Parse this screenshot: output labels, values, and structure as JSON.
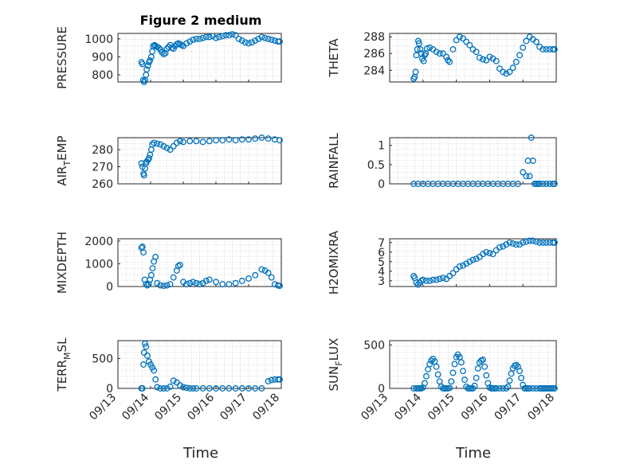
{
  "figure": {
    "title": "Figure 2 medium",
    "xlabel": "Time"
  },
  "chart_data": [
    {
      "type": "scatter",
      "id": "pressure",
      "ylabel": "PRESSURE",
      "ylabel_sub": "",
      "yticks": [
        800,
        900,
        1000
      ],
      "ylim": [
        760,
        1030
      ],
      "xticks": [
        "09/13",
        "09/14",
        "09/15",
        "09/16",
        "09/17",
        "09/18"
      ],
      "xlim": [
        0,
        5
      ],
      "show_xticklabels": false,
      "grid": true,
      "color": "#0072BD",
      "x": [
        0.72,
        0.75,
        0.77,
        0.8,
        0.83,
        0.86,
        0.88,
        0.92,
        0.95,
        0.98,
        1.02,
        1.05,
        1.08,
        1.12,
        1.15,
        1.2,
        1.25,
        1.3,
        1.35,
        1.4,
        1.45,
        1.5,
        1.55,
        1.6,
        1.65,
        1.7,
        1.75,
        1.8,
        1.85,
        1.9,
        1.95,
        2.0,
        2.1,
        2.2,
        2.3,
        2.4,
        2.5,
        2.6,
        2.7,
        2.8,
        2.9,
        3.0,
        3.1,
        3.2,
        3.3,
        3.4,
        3.5,
        3.6,
        3.7,
        3.8,
        3.9,
        4.0,
        4.1,
        4.2,
        4.3,
        4.4,
        4.5,
        4.6,
        4.7,
        4.8,
        4.9,
        4.95
      ],
      "y": [
        870,
        860,
        770,
        760,
        770,
        800,
        830,
        850,
        870,
        880,
        900,
        930,
        960,
        965,
        960,
        955,
        950,
        940,
        925,
        915,
        920,
        945,
        955,
        965,
        950,
        945,
        960,
        970,
        975,
        970,
        965,
        960,
        975,
        985,
        995,
        1000,
        1000,
        1005,
        1010,
        1010,
        1015,
        1005,
        1010,
        1015,
        1020,
        1020,
        1025,
        1020,
        1000,
        990,
        980,
        975,
        980,
        990,
        1000,
        1010,
        1005,
        1000,
        995,
        990,
        985,
        985
      ]
    },
    {
      "type": "scatter",
      "id": "theta",
      "ylabel": "THETA",
      "ylabel_sub": "",
      "yticks": [
        284,
        286,
        288
      ],
      "ylim": [
        282.6,
        288.4
      ],
      "xticks": [
        "09/13",
        "09/14",
        "09/15",
        "09/16",
        "09/17",
        "09/18"
      ],
      "xlim": [
        0,
        5
      ],
      "show_xticklabels": false,
      "grid": true,
      "color": "#0072BD",
      "x": [
        0.72,
        0.75,
        0.78,
        0.8,
        0.83,
        0.86,
        0.88,
        0.92,
        0.95,
        0.98,
        1.02,
        1.05,
        1.08,
        1.12,
        1.2,
        1.3,
        1.4,
        1.5,
        1.6,
        1.7,
        1.75,
        1.8,
        1.9,
        2.0,
        2.1,
        2.2,
        2.3,
        2.4,
        2.5,
        2.6,
        2.7,
        2.8,
        2.9,
        3.0,
        3.1,
        3.2,
        3.3,
        3.4,
        3.5,
        3.6,
        3.7,
        3.8,
        3.9,
        4.0,
        4.1,
        4.2,
        4.3,
        4.4,
        4.5,
        4.6,
        4.7,
        4.8,
        4.9,
        4.95
      ],
      "y": [
        283,
        283.2,
        283.8,
        285.8,
        286.5,
        287.5,
        287.2,
        286.5,
        286,
        285.4,
        285.1,
        285.8,
        286,
        286.6,
        286.7,
        286.5,
        286.2,
        286,
        286,
        285.6,
        285.2,
        285,
        286.5,
        287.6,
        288,
        287.8,
        287.4,
        287,
        286.5,
        286.2,
        285.5,
        285.3,
        285.2,
        285.6,
        285.4,
        285.1,
        284.2,
        283.8,
        283.6,
        283.8,
        284.3,
        285,
        285.8,
        286.7,
        287.5,
        288,
        287.7,
        287.4,
        286.8,
        286.5,
        286.5,
        286.5,
        286.5,
        286.5
      ]
    },
    {
      "type": "scatter",
      "id": "air_temp",
      "ylabel": "AIR",
      "ylabel_sub": "T",
      "ylabel_suffix": "EMP",
      "yticks": [
        260,
        270,
        280
      ],
      "ylim": [
        260,
        287
      ],
      "xticks": [
        "09/13",
        "09/14",
        "09/15",
        "09/16",
        "09/17",
        "09/18"
      ],
      "xlim": [
        0,
        5
      ],
      "show_xticklabels": false,
      "grid": true,
      "color": "#0072BD",
      "x": [
        0.72,
        0.75,
        0.78,
        0.8,
        0.83,
        0.86,
        0.88,
        0.92,
        0.95,
        0.98,
        1.02,
        1.05,
        1.1,
        1.2,
        1.3,
        1.4,
        1.5,
        1.6,
        1.7,
        1.8,
        1.9,
        2.0,
        2.2,
        2.4,
        2.6,
        2.8,
        3.0,
        3.2,
        3.4,
        3.6,
        3.8,
        4.0,
        4.2,
        4.4,
        4.6,
        4.8,
        4.95
      ],
      "y": [
        272,
        270,
        266,
        265,
        269,
        272,
        273,
        274,
        275,
        277,
        280,
        283,
        284,
        283.5,
        283,
        282,
        281,
        280,
        282,
        284,
        285,
        284.5,
        285,
        285,
        284.5,
        285,
        285.5,
        285.5,
        286,
        285.5,
        286,
        286,
        286.5,
        287,
        286.5,
        286,
        285.5
      ]
    },
    {
      "type": "scatter",
      "id": "rainfall",
      "ylabel": "RAINFALL",
      "ylabel_sub": "",
      "yticks": [
        0,
        0.5,
        1
      ],
      "ylim": [
        0,
        1.2
      ],
      "xticks": [
        "09/13",
        "09/14",
        "09/15",
        "09/16",
        "09/17",
        "09/18"
      ],
      "xlim": [
        0,
        5
      ],
      "show_xticklabels": false,
      "grid": true,
      "color": "#0072BD",
      "x": [
        0.72,
        0.85,
        1.0,
        1.15,
        1.3,
        1.45,
        1.6,
        1.75,
        1.9,
        2.05,
        2.2,
        2.35,
        2.5,
        2.65,
        2.8,
        2.95,
        3.1,
        3.25,
        3.4,
        3.55,
        3.7,
        3.85,
        4.0,
        4.1,
        4.15,
        4.2,
        4.25,
        4.3,
        4.35,
        4.4,
        4.45,
        4.5,
        4.6,
        4.7,
        4.8,
        4.9,
        4.95
      ],
      "y": [
        0,
        0,
        0,
        0,
        0,
        0,
        0,
        0,
        0,
        0,
        0,
        0,
        0,
        0,
        0,
        0,
        0,
        0,
        0,
        0,
        0,
        0,
        0.3,
        0.2,
        0.6,
        0.2,
        1.2,
        0.6,
        0,
        0,
        0,
        0,
        0,
        0,
        0,
        0,
        0
      ]
    },
    {
      "type": "scatter",
      "id": "mixdepth",
      "ylabel": "MIXDEPTH",
      "ylabel_sub": "",
      "yticks": [
        0,
        1000,
        2000
      ],
      "ylim": [
        0,
        2100
      ],
      "xticks": [
        "09/13",
        "09/14",
        "09/15",
        "09/16",
        "09/17",
        "09/18"
      ],
      "xlim": [
        0,
        5
      ],
      "show_xticklabels": false,
      "grid": true,
      "color": "#0072BD",
      "x": [
        0.72,
        0.75,
        0.78,
        0.82,
        0.86,
        0.9,
        0.94,
        0.98,
        1.02,
        1.06,
        1.1,
        1.15,
        1.2,
        1.3,
        1.4,
        1.5,
        1.6,
        1.7,
        1.8,
        1.85,
        1.9,
        2.0,
        2.1,
        2.2,
        2.3,
        2.4,
        2.5,
        2.6,
        2.7,
        2.8,
        3.0,
        3.2,
        3.4,
        3.6,
        3.8,
        4.0,
        4.2,
        4.4,
        4.5,
        4.6,
        4.7,
        4.8,
        4.9,
        4.95
      ],
      "y": [
        1700,
        1750,
        1500,
        300,
        100,
        50,
        100,
        300,
        500,
        800,
        1100,
        1300,
        150,
        50,
        30,
        50,
        100,
        400,
        700,
        900,
        950,
        200,
        100,
        150,
        200,
        150,
        100,
        150,
        250,
        300,
        200,
        100,
        100,
        150,
        250,
        350,
        500,
        750,
        700,
        600,
        400,
        100,
        50,
        30
      ]
    },
    {
      "type": "scatter",
      "id": "h2omixra",
      "ylabel": "H2OMIXRA",
      "ylabel_sub": "",
      "yticks": [
        3,
        4,
        5,
        6,
        7
      ],
      "ylim": [
        2.4,
        7.4
      ],
      "xticks": [
        "09/13",
        "09/14",
        "09/15",
        "09/16",
        "09/17",
        "09/18"
      ],
      "xlim": [
        0,
        5
      ],
      "show_xticklabels": false,
      "grid": true,
      "color": "#0072BD",
      "x": [
        0.72,
        0.75,
        0.8,
        0.85,
        0.9,
        0.95,
        1.0,
        1.1,
        1.2,
        1.3,
        1.4,
        1.5,
        1.6,
        1.7,
        1.8,
        1.9,
        2.0,
        2.1,
        2.2,
        2.3,
        2.4,
        2.5,
        2.6,
        2.7,
        2.8,
        2.9,
        3.0,
        3.1,
        3.2,
        3.3,
        3.4,
        3.5,
        3.6,
        3.7,
        3.8,
        3.9,
        4.0,
        4.1,
        4.2,
        4.3,
        4.4,
        4.5,
        4.6,
        4.7,
        4.8,
        4.9,
        4.95
      ],
      "y": [
        3.5,
        3.3,
        2.8,
        2.6,
        2.8,
        3.0,
        3.1,
        3.0,
        3.0,
        3.1,
        3.1,
        3.2,
        3.3,
        3.2,
        3.5,
        3.8,
        4.2,
        4.5,
        4.6,
        4.8,
        5.0,
        5.2,
        5.3,
        5.5,
        5.8,
        6.0,
        5.9,
        5.8,
        6.2,
        6.5,
        6.6,
        6.8,
        7.0,
        6.9,
        6.8,
        6.8,
        7.0,
        7.1,
        7.2,
        7.2,
        7.1,
        7.0,
        7.0,
        7.0,
        7.0,
        7.0,
        7.0
      ]
    },
    {
      "type": "scatter",
      "id": "terr_msl",
      "ylabel": "TERR",
      "ylabel_sub": "M",
      "ylabel_suffix": "SL",
      "yticks": [
        0,
        500
      ],
      "ylim": [
        0,
        800
      ],
      "xticks": [
        "09/13",
        "09/14",
        "09/15",
        "09/16",
        "09/17",
        "09/18"
      ],
      "xlim": [
        0,
        5
      ],
      "show_xticklabels": true,
      "grid": true,
      "color": "#0072BD",
      "x": [
        0.72,
        0.75,
        0.78,
        0.8,
        0.83,
        0.86,
        0.9,
        0.95,
        1.0,
        1.05,
        1.1,
        1.15,
        1.2,
        1.3,
        1.4,
        1.5,
        1.6,
        1.7,
        1.8,
        1.9,
        2.0,
        2.1,
        2.2,
        2.3,
        2.4,
        2.6,
        2.8,
        3.0,
        3.2,
        3.4,
        3.6,
        3.8,
        4.0,
        4.2,
        4.4,
        4.6,
        4.7,
        4.8,
        4.9,
        4.95
      ],
      "y": [
        0,
        0,
        400,
        600,
        750,
        700,
        550,
        450,
        400,
        350,
        300,
        150,
        20,
        0,
        0,
        0,
        30,
        130,
        100,
        50,
        20,
        10,
        0,
        0,
        0,
        0,
        0,
        0,
        0,
        0,
        0,
        0,
        0,
        0,
        0,
        120,
        140,
        150,
        150,
        150
      ]
    },
    {
      "type": "scatter",
      "id": "sun_flux",
      "ylabel": "SUN",
      "ylabel_sub": "F",
      "ylabel_suffix": "LUX",
      "yticks": [
        0,
        500
      ],
      "ylim": [
        0,
        550
      ],
      "xticks": [
        "09/13",
        "09/14",
        "09/15",
        "09/16",
        "09/17",
        "09/18"
      ],
      "xlim": [
        0,
        5
      ],
      "show_xticklabels": true,
      "grid": true,
      "color": "#0072BD",
      "x": [
        0.72,
        0.8,
        0.85,
        0.9,
        0.95,
        1.0,
        1.05,
        1.1,
        1.15,
        1.2,
        1.25,
        1.3,
        1.35,
        1.4,
        1.45,
        1.5,
        1.55,
        1.6,
        1.65,
        1.7,
        1.75,
        1.8,
        1.85,
        1.9,
        1.95,
        2.0,
        2.05,
        2.1,
        2.15,
        2.2,
        2.25,
        2.3,
        2.35,
        2.4,
        2.45,
        2.5,
        2.55,
        2.6,
        2.65,
        2.7,
        2.75,
        2.8,
        2.85,
        2.9,
        2.95,
        3.0,
        3.05,
        3.1,
        3.15,
        3.2,
        3.3,
        3.4,
        3.5,
        3.55,
        3.6,
        3.65,
        3.7,
        3.75,
        3.8,
        3.85,
        3.9,
        3.95,
        4.0,
        4.05,
        4.1,
        4.15,
        4.2,
        4.3,
        4.4,
        4.5,
        4.55,
        4.6,
        4.65,
        4.7,
        4.75,
        4.8,
        4.85,
        4.9,
        4.95
      ],
      "y": [
        0,
        0,
        0,
        0,
        0,
        10,
        60,
        140,
        220,
        280,
        320,
        340,
        310,
        250,
        160,
        80,
        20,
        0,
        0,
        0,
        0,
        5,
        80,
        180,
        280,
        360,
        390,
        360,
        300,
        200,
        100,
        20,
        0,
        0,
        0,
        0,
        30,
        120,
        230,
        300,
        320,
        330,
        250,
        150,
        60,
        10,
        0,
        0,
        0,
        0,
        0,
        0,
        0,
        20,
        90,
        170,
        230,
        260,
        270,
        250,
        200,
        120,
        40,
        0,
        0,
        0,
        0,
        0,
        0,
        0,
        0,
        0,
        0,
        0,
        0,
        0,
        0,
        0,
        0
      ]
    }
  ]
}
